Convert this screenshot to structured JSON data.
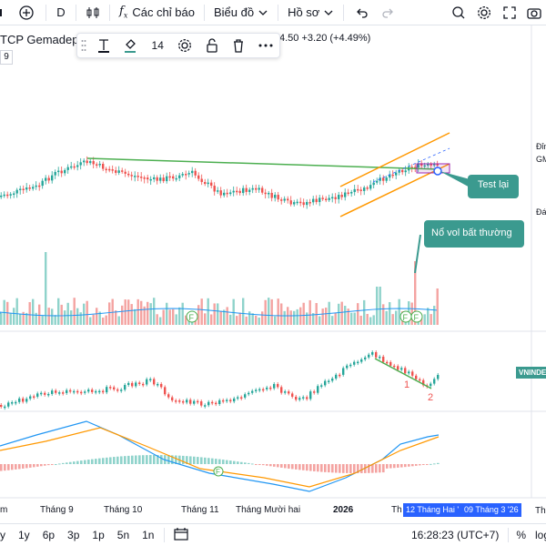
{
  "toolbar": {
    "interval": "D",
    "indicators_label": "Các chỉ báo",
    "chart_label": "Biểu đồ",
    "profile_label": "Hồ sơ"
  },
  "symbol": {
    "name": "TCP Gemadept",
    "price": "4.50",
    "change": "+3.20",
    "change_pct": "(+4.49%)",
    "badge": "9"
  },
  "float_toolbar": {
    "font_size": "14"
  },
  "annotations": {
    "test_lai": "Test lại",
    "no_vol": "Nổ vol bất thường",
    "label_1": "1",
    "label_2": "2",
    "marker_f": "F"
  },
  "right_labels": {
    "dinh": "Đỉn",
    "gm": "GM",
    "da": "Đá",
    "vnindex": "VNINDE"
  },
  "time_axis": [
    "m",
    "Tháng 9",
    "Tháng 10",
    "Tháng 11",
    "Tháng Mười hai",
    "2026",
    "Th"
  ],
  "date_highlight": {
    "start": "12 Tháng Hai '",
    "end": "09 Tháng 3 '26",
    "next": "Th"
  },
  "bottom": {
    "ranges": [
      "y",
      "1y",
      "6p",
      "3p",
      "1p",
      "5n",
      "1n"
    ],
    "time": "16:28:23 (UTC+7)",
    "percent": "%",
    "log": "log"
  },
  "colors": {
    "up": "#26a69a",
    "down": "#ef5350",
    "accent": "#3b9a8f",
    "trend_green": "#4caf50",
    "channel": "#ff9800",
    "macd_blue": "#2196f3",
    "signal_orange": "#ff9800"
  }
}
